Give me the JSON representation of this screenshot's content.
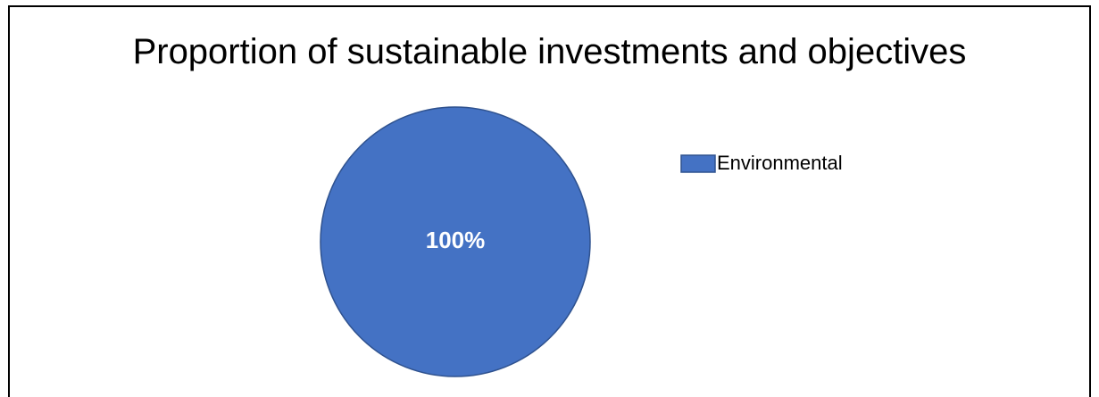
{
  "chart_data": {
    "type": "pie",
    "title": "Proportion of sustainable investments and objectives",
    "categories": [
      "Environmental"
    ],
    "values": [
      100
    ],
    "data_labels": [
      "100%"
    ],
    "colors": [
      "#4472C4"
    ],
    "legend_position": "right"
  }
}
